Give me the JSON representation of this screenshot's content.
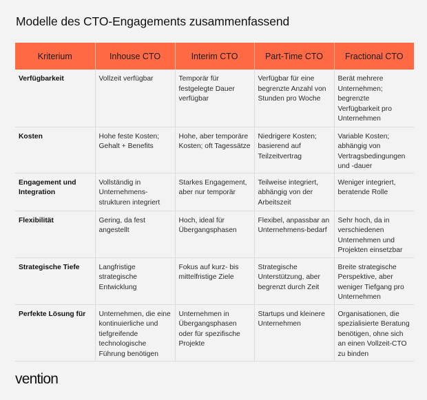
{
  "title": "Modelle des CTO-Engagements zusammenfassend",
  "table": {
    "headers": [
      "Kriterium",
      "Inhouse CTO",
      "Interim CTO",
      "Part-Time CTO",
      "Fractional CTO"
    ],
    "rows": [
      [
        "Verfügbarkeit",
        "Vollzeit verfügbar",
        "Temporär für festgelegte Dauer verfügbar",
        "Verfügbar für eine begrenzte Anzahl von Stunden pro Woche",
        "Berät mehrere Unternehmen; begrenzte Verfügbarkeit pro Unternehmen"
      ],
      [
        "Kosten",
        "Hohe feste Kosten; Gehalt + Benefits",
        "Hohe, aber temporäre Kosten; oft Tagessätze",
        "Niedrigere Kosten; basierend auf Teilzeitvertrag",
        "Variable Kosten; abhängig von Vertragsbedingungen und -dauer"
      ],
      [
        "Engagement und Integration",
        "Vollständig in Unternehmens-strukturen integriert",
        "Starkes Engagement, aber nur temporär",
        "Teilweise integriert, abhängig von der Arbeitszeit",
        "Weniger integriert, beratende Rolle"
      ],
      [
        "Flexibilität",
        "Gering, da fest angestellt",
        "Hoch, ideal für Übergangsphasen",
        "Flexibel, anpassbar an Unternehmens-bedarf",
        "Sehr hoch, da in verschiedenen Unternehmen und Projekten einsetzbar"
      ],
      [
        "Strategische Tiefe",
        "Langfristige strategische Entwicklung",
        "Fokus auf kurz- bis mittelfristige Ziele",
        "Strategische Unterstützung, aber begrenzt durch Zeit",
        "Breite strategische Perspektive, aber weniger Tiefgang pro Unternehmen"
      ],
      [
        "Perfekte Lösung für",
        "Unternehmen, die eine kontinuierliche und tiefgreifende technologische Führung benötigen",
        "Unternehmen in Übergangsphasen oder für spezifische Projekte",
        "Startups und kleinere Unternehmen",
        "Organisationen, die spezialisierte Beratung benötigen, ohne sich an einen Vollzeit-CTO zu binden"
      ]
    ]
  },
  "brand": "vention",
  "colors": {
    "header_bg": "#ff6a45",
    "page_bg": "#f3f3f3",
    "grid": "#dcdcdc"
  }
}
